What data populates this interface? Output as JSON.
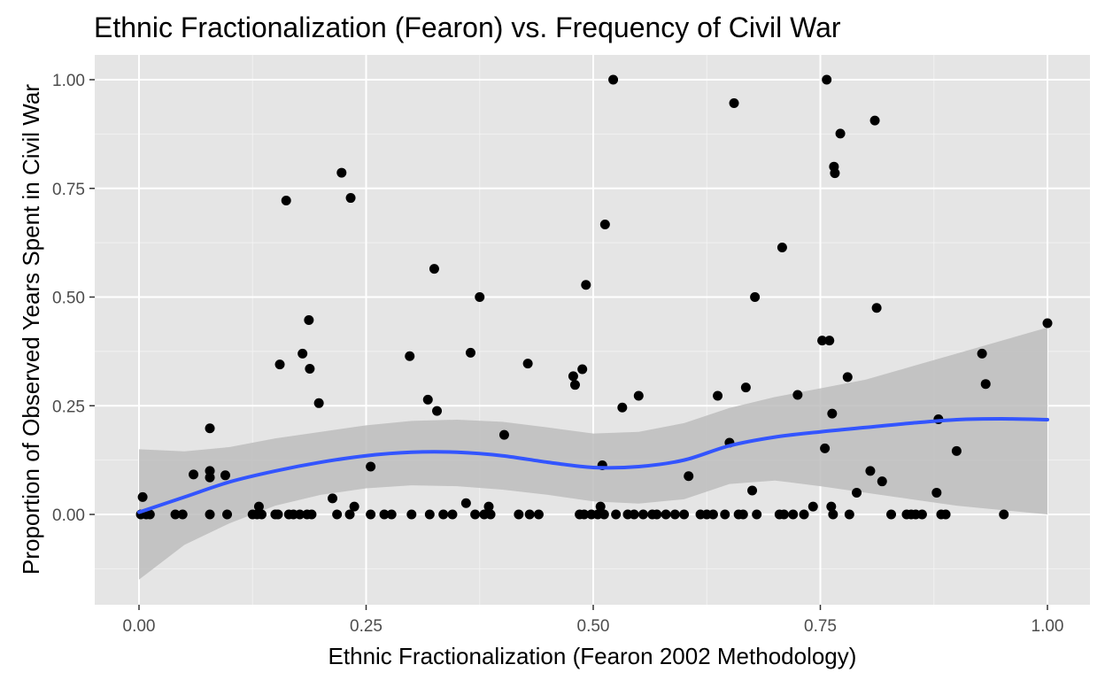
{
  "chart_data": {
    "type": "scatter",
    "title": "Ethnic Fractionalization (Fearon) vs. Frequency of Civil War",
    "xlabel": "Ethnic Fractionalization (Fearon 2002 Methodology)",
    "ylabel": "Proportion of Observed Years Spent in Civil War",
    "xlim": [
      -0.05,
      1.05
    ],
    "ylim": [
      -0.2,
      1.05
    ],
    "x_ticks": [
      0.0,
      0.25,
      0.5,
      0.75,
      1.0
    ],
    "x_tick_labels": [
      "0.00",
      "0.25",
      "0.50",
      "0.75",
      "1.00"
    ],
    "y_ticks": [
      0.0,
      0.25,
      0.5,
      0.75,
      1.0
    ],
    "y_tick_labels": [
      "0.00",
      "0.25",
      "0.50",
      "0.75",
      "1.00"
    ],
    "grid": true,
    "colors": {
      "panel": "#e5e5e5",
      "grid_major": "#ffffff",
      "points": "#000000",
      "smooth_line": "#3355ff",
      "confidence_band": "#bdbdbd"
    },
    "points": [
      [
        0.004,
        0.04
      ],
      [
        0.002,
        0.0
      ],
      [
        0.008,
        0.0
      ],
      [
        0.012,
        0.0
      ],
      [
        0.04,
        0.0
      ],
      [
        0.048,
        0.0
      ],
      [
        0.06,
        0.092
      ],
      [
        0.078,
        0.198
      ],
      [
        0.078,
        0.1
      ],
      [
        0.078,
        0.085
      ],
      [
        0.078,
        0.0
      ],
      [
        0.095,
        0.09
      ],
      [
        0.097,
        0.0
      ],
      [
        0.125,
        0.0
      ],
      [
        0.13,
        0.0
      ],
      [
        0.132,
        0.018
      ],
      [
        0.135,
        0.0
      ],
      [
        0.15,
        0.0
      ],
      [
        0.153,
        0.0
      ],
      [
        0.155,
        0.345
      ],
      [
        0.162,
        0.722
      ],
      [
        0.165,
        0.0
      ],
      [
        0.17,
        0.0
      ],
      [
        0.177,
        0.0
      ],
      [
        0.18,
        0.37
      ],
      [
        0.185,
        0.0
      ],
      [
        0.187,
        0.447
      ],
      [
        0.188,
        0.335
      ],
      [
        0.19,
        0.0
      ],
      [
        0.198,
        0.256
      ],
      [
        0.213,
        0.037
      ],
      [
        0.218,
        0.0
      ],
      [
        0.223,
        0.786
      ],
      [
        0.232,
        0.0
      ],
      [
        0.233,
        0.728
      ],
      [
        0.237,
        0.018
      ],
      [
        0.255,
        0.11
      ],
      [
        0.255,
        0.0
      ],
      [
        0.27,
        0.0
      ],
      [
        0.278,
        0.0
      ],
      [
        0.298,
        0.364
      ],
      [
        0.3,
        0.0
      ],
      [
        0.318,
        0.264
      ],
      [
        0.32,
        0.0
      ],
      [
        0.325,
        0.565
      ],
      [
        0.328,
        0.238
      ],
      [
        0.335,
        0.0
      ],
      [
        0.345,
        0.0
      ],
      [
        0.36,
        0.026
      ],
      [
        0.365,
        0.372
      ],
      [
        0.37,
        0.0
      ],
      [
        0.375,
        0.5
      ],
      [
        0.38,
        0.0
      ],
      [
        0.385,
        0.018
      ],
      [
        0.387,
        0.0
      ],
      [
        0.402,
        0.183
      ],
      [
        0.418,
        0.0
      ],
      [
        0.428,
        0.347
      ],
      [
        0.43,
        0.0
      ],
      [
        0.44,
        0.0
      ],
      [
        0.478,
        0.318
      ],
      [
        0.48,
        0.298
      ],
      [
        0.485,
        0.0
      ],
      [
        0.488,
        0.334
      ],
      [
        0.49,
        0.0
      ],
      [
        0.492,
        0.528
      ],
      [
        0.498,
        0.0
      ],
      [
        0.505,
        0.0
      ],
      [
        0.508,
        0.018
      ],
      [
        0.51,
        0.113
      ],
      [
        0.512,
        0.0
      ],
      [
        0.513,
        0.667
      ],
      [
        0.522,
        1.0
      ],
      [
        0.525,
        0.0
      ],
      [
        0.532,
        0.246
      ],
      [
        0.538,
        0.0
      ],
      [
        0.545,
        0.0
      ],
      [
        0.55,
        0.273
      ],
      [
        0.555,
        0.0
      ],
      [
        0.565,
        0.0
      ],
      [
        0.57,
        0.0
      ],
      [
        0.58,
        0.0
      ],
      [
        0.59,
        0.0
      ],
      [
        0.6,
        0.0
      ],
      [
        0.605,
        0.088
      ],
      [
        0.618,
        0.0
      ],
      [
        0.625,
        0.0
      ],
      [
        0.632,
        0.0
      ],
      [
        0.637,
        0.273
      ],
      [
        0.645,
        0.0
      ],
      [
        0.65,
        0.165
      ],
      [
        0.655,
        0.946
      ],
      [
        0.66,
        0.0
      ],
      [
        0.665,
        0.0
      ],
      [
        0.668,
        0.292
      ],
      [
        0.675,
        0.055
      ],
      [
        0.678,
        0.5
      ],
      [
        0.68,
        0.0
      ],
      [
        0.705,
        0.0
      ],
      [
        0.708,
        0.614
      ],
      [
        0.71,
        0.0
      ],
      [
        0.72,
        0.0
      ],
      [
        0.725,
        0.275
      ],
      [
        0.732,
        0.0
      ],
      [
        0.742,
        0.018
      ],
      [
        0.752,
        0.4
      ],
      [
        0.755,
        0.152
      ],
      [
        0.757,
        1.0
      ],
      [
        0.76,
        0.4
      ],
      [
        0.762,
        0.018
      ],
      [
        0.763,
        0.232
      ],
      [
        0.764,
        0.0
      ],
      [
        0.765,
        0.8
      ],
      [
        0.766,
        0.785
      ],
      [
        0.772,
        0.876
      ],
      [
        0.78,
        0.316
      ],
      [
        0.782,
        0.0
      ],
      [
        0.79,
        0.05
      ],
      [
        0.805,
        0.1
      ],
      [
        0.81,
        0.906
      ],
      [
        0.812,
        0.475
      ],
      [
        0.818,
        0.076
      ],
      [
        0.828,
        0.0
      ],
      [
        0.845,
        0.0
      ],
      [
        0.85,
        0.0
      ],
      [
        0.855,
        0.0
      ],
      [
        0.862,
        0.0
      ],
      [
        0.878,
        0.05
      ],
      [
        0.88,
        0.219
      ],
      [
        0.883,
        0.0
      ],
      [
        0.888,
        0.0
      ],
      [
        0.9,
        0.146
      ],
      [
        0.928,
        0.37
      ],
      [
        0.932,
        0.3
      ],
      [
        0.952,
        0.0
      ],
      [
        1.0,
        0.44
      ]
    ],
    "smooth": {
      "x": [
        0.0,
        0.05,
        0.1,
        0.15,
        0.2,
        0.25,
        0.3,
        0.35,
        0.4,
        0.45,
        0.5,
        0.55,
        0.6,
        0.65,
        0.7,
        0.75,
        0.8,
        0.85,
        0.9,
        0.95,
        1.0
      ],
      "fit": [
        0.005,
        0.04,
        0.075,
        0.1,
        0.12,
        0.135,
        0.143,
        0.143,
        0.135,
        0.12,
        0.108,
        0.11,
        0.125,
        0.158,
        0.178,
        0.19,
        0.2,
        0.21,
        0.218,
        0.22,
        0.218
      ],
      "lower": [
        -0.15,
        -0.07,
        -0.02,
        0.02,
        0.045,
        0.06,
        0.067,
        0.065,
        0.057,
        0.045,
        0.03,
        0.025,
        0.035,
        0.07,
        0.078,
        0.065,
        0.05,
        0.035,
        0.02,
        0.01,
        0.0
      ],
      "upper": [
        0.15,
        0.145,
        0.155,
        0.175,
        0.19,
        0.205,
        0.215,
        0.218,
        0.213,
        0.2,
        0.186,
        0.19,
        0.21,
        0.245,
        0.27,
        0.29,
        0.31,
        0.34,
        0.37,
        0.4,
        0.43
      ]
    }
  }
}
